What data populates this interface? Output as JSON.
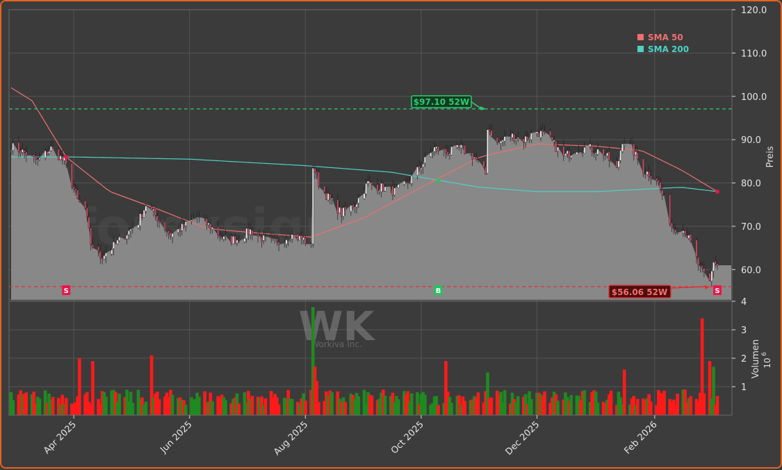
{
  "chart_data": {
    "type": "candlestick",
    "watermark": "forexsignale.trade",
    "logo_text": "WK",
    "logo_subtext": "Workiva Inc.",
    "ylabel": "Preis",
    "ylim": [
      53,
      120
    ],
    "yticks": [
      60,
      70,
      80,
      90,
      100,
      110,
      120
    ],
    "ytick_labels": [
      "60.0",
      "70.0",
      "80.0",
      "90.0",
      "100.0",
      "110.0",
      "120.0"
    ],
    "volume_label": "Volumen",
    "volume_exponent": "10",
    "volume_exponent_power": "6",
    "volume_ylim": [
      0,
      4
    ],
    "volume_ticks": [
      1,
      2,
      3,
      4
    ],
    "x_start": "2025-02-27",
    "x_end": "2026-03-06",
    "x_ticks": [
      {
        "date": "2025-04-01",
        "label": "Apr 2025"
      },
      {
        "date": "2025-06-01",
        "label": "Jun 2025"
      },
      {
        "date": "2025-08-01",
        "label": "Aug 2025"
      },
      {
        "date": "2025-10-01",
        "label": "Oct 2025"
      },
      {
        "date": "2025-12-01",
        "label": "Dec 2025"
      },
      {
        "date": "2026-02-01",
        "label": "Feb 2026"
      }
    ],
    "legend": [
      {
        "name": "SMA 50",
        "color": "#f07070"
      },
      {
        "name": "SMA 200",
        "color": "#4fd1c5"
      }
    ],
    "legend_position": "top-right",
    "high_52w": {
      "value": 97.1,
      "label": "$97.10 52W",
      "date": "2025-11-04"
    },
    "low_52w": {
      "value": 56.06,
      "label": "$56.06 52W",
      "date": "2026-03-02"
    },
    "signals": [
      {
        "type": "S",
        "date": "2025-03-28",
        "price": 86.0
      },
      {
        "type": "B",
        "date": "2025-10-10",
        "price": 80.5
      },
      {
        "type": "S",
        "date": "2026-03-06",
        "price": 78.0
      }
    ],
    "colors": {
      "up": "#1f8a1f",
      "down": "#ff1a1a",
      "sma50": "#f07070",
      "sma200": "#4fd1c5",
      "high_line": "#2ecc71",
      "low_line": "#e03030",
      "area": "#8c8c8c"
    },
    "price_anchors": [
      [
        "2025-02-27",
        88.5
      ],
      [
        "2025-03-06",
        87
      ],
      [
        "2025-03-13",
        85
      ],
      [
        "2025-03-20",
        88
      ],
      [
        "2025-03-27",
        85
      ],
      [
        "2025-04-03",
        76
      ],
      [
        "2025-04-07",
        74
      ],
      [
        "2025-04-10",
        66
      ],
      [
        "2025-04-15",
        63
      ],
      [
        "2025-04-21",
        65
      ],
      [
        "2025-04-28",
        68
      ],
      [
        "2025-05-05",
        71
      ],
      [
        "2025-05-09",
        75
      ],
      [
        "2025-05-15",
        72
      ],
      [
        "2025-05-22",
        68
      ],
      [
        "2025-05-29",
        70
      ],
      [
        "2025-06-05",
        72
      ],
      [
        "2025-06-12",
        70
      ],
      [
        "2025-06-19",
        67
      ],
      [
        "2025-06-26",
        67
      ],
      [
        "2025-07-03",
        69
      ],
      [
        "2025-07-10",
        67
      ],
      [
        "2025-07-17",
        66
      ],
      [
        "2025-07-24",
        68
      ],
      [
        "2025-07-31",
        67
      ],
      [
        "2025-08-04",
        65
      ],
      [
        "2025-08-05",
        84
      ],
      [
        "2025-08-08",
        80
      ],
      [
        "2025-08-14",
        76
      ],
      [
        "2025-08-20",
        73
      ],
      [
        "2025-08-27",
        75
      ],
      [
        "2025-09-03",
        80
      ],
      [
        "2025-09-10",
        79
      ],
      [
        "2025-09-17",
        78
      ],
      [
        "2025-09-24",
        80
      ],
      [
        "2025-10-01",
        84
      ],
      [
        "2025-10-08",
        88
      ],
      [
        "2025-10-15",
        87
      ],
      [
        "2025-10-22",
        88
      ],
      [
        "2025-10-29",
        86
      ],
      [
        "2025-11-04",
        82
      ],
      [
        "2025-11-05",
        93
      ],
      [
        "2025-11-10",
        89
      ],
      [
        "2025-11-17",
        91
      ],
      [
        "2025-11-24",
        90
      ],
      [
        "2025-12-01",
        92
      ],
      [
        "2025-12-08",
        90
      ],
      [
        "2025-12-15",
        86
      ],
      [
        "2025-12-22",
        88
      ],
      [
        "2025-12-29",
        88
      ],
      [
        "2026-01-05",
        87
      ],
      [
        "2026-01-12",
        83
      ],
      [
        "2026-01-15",
        90
      ],
      [
        "2026-01-20",
        88
      ],
      [
        "2026-01-26",
        83
      ],
      [
        "2026-02-02",
        81
      ],
      [
        "2026-02-06",
        76
      ],
      [
        "2026-02-10",
        70
      ],
      [
        "2026-02-17",
        69
      ],
      [
        "2026-02-20",
        66
      ],
      [
        "2026-02-25",
        60
      ],
      [
        "2026-03-02",
        57
      ],
      [
        "2026-03-04",
        62
      ],
      [
        "2026-03-06",
        61
      ]
    ],
    "sma50_anchors": [
      [
        "2025-02-27",
        102
      ],
      [
        "2025-03-10",
        99
      ],
      [
        "2025-03-28",
        86
      ],
      [
        "2025-04-20",
        78
      ],
      [
        "2025-05-15",
        74
      ],
      [
        "2025-06-10",
        69.5
      ],
      [
        "2025-07-05",
        68.5
      ],
      [
        "2025-08-04",
        67.5
      ],
      [
        "2025-09-01",
        72
      ],
      [
        "2025-10-01",
        79
      ],
      [
        "2025-11-01",
        86
      ],
      [
        "2025-12-01",
        89
      ],
      [
        "2026-01-01",
        88.5
      ],
      [
        "2026-01-25",
        87.5
      ],
      [
        "2026-02-15",
        83
      ],
      [
        "2026-03-06",
        78
      ]
    ],
    "sma200_anchors": [
      [
        "2025-02-27",
        86
      ],
      [
        "2025-04-01",
        86
      ],
      [
        "2025-06-01",
        85.5
      ],
      [
        "2025-08-01",
        84
      ],
      [
        "2025-09-15",
        82.5
      ],
      [
        "2025-11-01",
        79
      ],
      [
        "2025-12-01",
        78
      ],
      [
        "2026-01-01",
        78
      ],
      [
        "2026-02-15",
        79
      ],
      [
        "2026-03-06",
        78
      ]
    ],
    "volume_events": [
      [
        "2025-04-04",
        2.0
      ],
      [
        "2025-04-11",
        1.9
      ],
      [
        "2025-05-12",
        2.1
      ],
      [
        "2025-08-05",
        3.8
      ],
      [
        "2025-08-06",
        1.7
      ],
      [
        "2025-08-07",
        1.2
      ],
      [
        "2025-10-14",
        1.9
      ],
      [
        "2025-11-05",
        1.5
      ],
      [
        "2026-01-16",
        1.6
      ],
      [
        "2026-02-26",
        3.4
      ],
      [
        "2026-03-02",
        1.9
      ],
      [
        "2026-03-04",
        1.7
      ]
    ]
  }
}
